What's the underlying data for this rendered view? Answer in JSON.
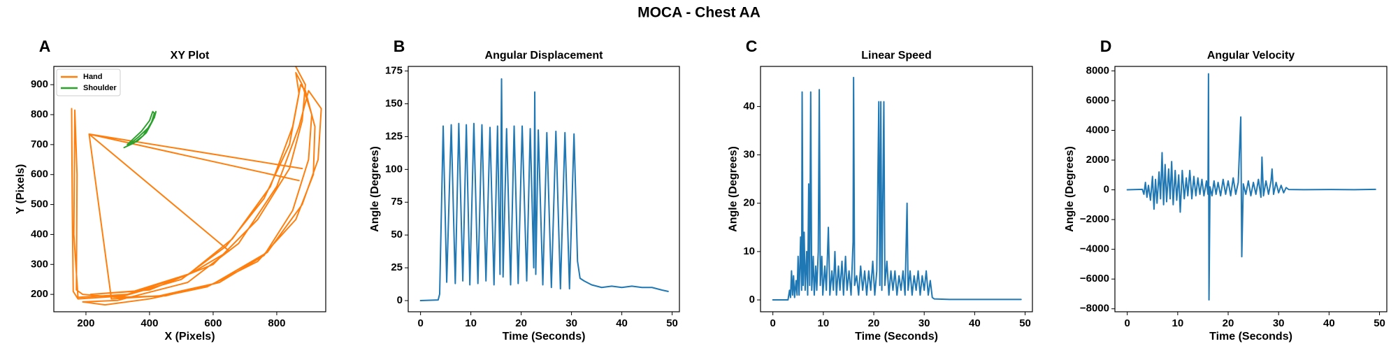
{
  "title": "MOCA - Chest AA",
  "chart_data": [
    {
      "type": "line",
      "panel_label": "A",
      "title": "XY Plot",
      "xlabel": "X (Pixels)",
      "ylabel": "Y (Pixels)",
      "xlim": [
        99,
        954
      ],
      "ylim": [
        142,
        961
      ],
      "xticks": [
        200,
        400,
        600,
        800
      ],
      "yticks": [
        200,
        300,
        400,
        500,
        600,
        700,
        800,
        900
      ],
      "legend": "upper left",
      "series": [
        {
          "name": "Hand",
          "color": "#ff7f0e",
          "x": [
            155,
            157,
            160,
            175,
            320,
            500,
            640,
            760,
            840,
            870,
            860,
            880,
            910,
            900,
            850,
            760,
            620,
            450,
            300,
            190,
            170,
            172,
            165,
            162,
            175,
            330,
            520,
            660,
            780,
            850,
            875,
            890,
            920,
            915,
            860,
            740,
            580,
            400,
            260,
            190,
            300,
            520,
            680,
            800,
            870,
            900,
            940,
            930,
            880,
            770,
            600,
            430,
            280,
            210,
            880,
            210,
            870,
            210,
            650,
            530,
            350,
            215,
            400,
            600,
            740,
            840,
            880,
            890,
            860
          ],
          "values": [
            820,
            500,
            210,
            185,
            195,
            250,
            360,
            520,
            700,
            870,
            940,
            900,
            800,
            650,
            480,
            330,
            240,
            195,
            190,
            200,
            215,
            600,
            815,
            400,
            190,
            200,
            265,
            385,
            560,
            760,
            900,
            880,
            760,
            600,
            450,
            310,
            225,
            185,
            165,
            175,
            180,
            240,
            370,
            560,
            760,
            880,
            820,
            650,
            500,
            340,
            235,
            195,
            185,
            735,
            620,
            735,
            580,
            735,
            345,
            270,
            210,
            200,
            215,
            300,
            450,
            620,
            780,
            900,
            960
          ]
        },
        {
          "name": "Shoulder",
          "color": "#2ca02c",
          "x": [
            320,
            350,
            380,
            405,
            415,
            410,
            400,
            375,
            345,
            330,
            360,
            390,
            410,
            420,
            415,
            395,
            365,
            335
          ],
          "values": [
            690,
            705,
            730,
            770,
            805,
            810,
            780,
            745,
            715,
            700,
            710,
            740,
            780,
            810,
            790,
            755,
            725,
            700
          ]
        }
      ]
    },
    {
      "type": "line",
      "panel_label": "B",
      "title": "Angular Displacement",
      "xlabel": "Time (Seconds)",
      "ylabel": "Angle (Degrees)",
      "xlim": [
        -2.45,
        51.45
      ],
      "ylim": [
        -8.5,
        178.5
      ],
      "xticks": [
        0,
        10,
        20,
        30,
        40,
        50
      ],
      "yticks": [
        0,
        25,
        50,
        75,
        100,
        125,
        150,
        175
      ],
      "series": [
        {
          "color": "#1f77b4",
          "x": [
            0,
            3.5,
            3.8,
            4.5,
            5.2,
            6.1,
            6.9,
            7.6,
            8.4,
            9.1,
            9.8,
            10.6,
            11.4,
            12.2,
            13.0,
            13.8,
            14.6,
            15.3,
            15.8,
            16.1,
            16.4,
            17.1,
            17.9,
            18.6,
            19.4,
            20.2,
            21.1,
            21.8,
            22.5,
            22.7,
            22.9,
            23.4,
            24.3,
            25.1,
            26.0,
            26.9,
            27.8,
            28.7,
            29.6,
            30.5,
            31.2,
            31.7,
            32.5,
            34,
            36,
            38,
            40,
            42,
            44,
            46,
            48,
            49.2
          ],
          "values": [
            0,
            0.5,
            5,
            133,
            14,
            134,
            13,
            135,
            15,
            134,
            12,
            135,
            13,
            134,
            15,
            132,
            12,
            133,
            20,
            169,
            18,
            131,
            12,
            133,
            13,
            133,
            15,
            131,
            25,
            159,
            20,
            130,
            12,
            128,
            10,
            129,
            9,
            128,
            9,
            127,
            30,
            17,
            15,
            12,
            10,
            11,
            10,
            11,
            10,
            10,
            8,
            7
          ]
        }
      ]
    },
    {
      "type": "line",
      "panel_label": "C",
      "title": "Linear Speed",
      "xlabel": "Time (Seconds)",
      "ylabel": "Angle (Degrees)",
      "xlim": [
        -2.45,
        51.45
      ],
      "ylim": [
        -2.45,
        48.3
      ],
      "xticks": [
        0,
        10,
        20,
        30,
        40,
        50
      ],
      "yticks": [
        0,
        10,
        20,
        30,
        40
      ],
      "series": [
        {
          "color": "#1f77b4",
          "x": [
            0,
            3.0,
            3.3,
            3.5,
            3.7,
            3.9,
            4.1,
            4.3,
            4.6,
            4.8,
            5.0,
            5.2,
            5.5,
            5.7,
            5.8,
            6.0,
            6.2,
            6.4,
            6.7,
            6.9,
            7.1,
            7.3,
            7.5,
            7.7,
            8.0,
            8.2,
            8.5,
            8.7,
            9.0,
            9.2,
            9.4,
            9.7,
            9.9,
            10.3,
            10.6,
            11.0,
            11.3,
            11.7,
            12.0,
            12.3,
            12.6,
            13.0,
            13.3,
            13.7,
            14.0,
            14.4,
            14.7,
            15.1,
            15.5,
            15.9,
            16.0,
            16.2,
            16.6,
            17.0,
            17.4,
            17.8,
            18.2,
            18.6,
            19.0,
            19.4,
            19.8,
            20.2,
            20.6,
            21.0,
            21.2,
            21.4,
            21.6,
            22.0,
            22.2,
            22.6,
            23.0,
            23.4,
            23.8,
            24.2,
            24.6,
            25.0,
            25.4,
            25.8,
            26.2,
            26.6,
            26.8,
            27.2,
            27.6,
            28.0,
            28.4,
            28.8,
            29.2,
            29.6,
            30.0,
            30.4,
            30.8,
            31.2,
            31.6,
            32.0,
            35,
            40,
            45,
            49.2
          ],
          "values": [
            0,
            0,
            2,
            0.5,
            6,
            1,
            5,
            0.5,
            4,
            1,
            9,
            1,
            13,
            2,
            43,
            3,
            14,
            2,
            10,
            1,
            24,
            3,
            43,
            2,
            9,
            1,
            7,
            2,
            10,
            43.5,
            3,
            9,
            1,
            7,
            2,
            15,
            1,
            6,
            2,
            10,
            1,
            7,
            2,
            8,
            1,
            9,
            2,
            6,
            1,
            12,
            46,
            3,
            5,
            1,
            7,
            2,
            6,
            1,
            6,
            2,
            8,
            1,
            6,
            41,
            3,
            41,
            2,
            41,
            3,
            8,
            1,
            6,
            2,
            6,
            1,
            5,
            2,
            6,
            1,
            20,
            2,
            6,
            1,
            5,
            2,
            6,
            1,
            5,
            2,
            6,
            1,
            4,
            0.5,
            0.2,
            0.1,
            0.1,
            0.1,
            0.1
          ]
        }
      ]
    },
    {
      "type": "line",
      "panel_label": "D",
      "title": "Angular Velocity",
      "xlabel": "Time (Seconds)",
      "ylabel": "Angle (Degrees)",
      "xlim": [
        -2.45,
        51.45
      ],
      "ylim": [
        -8200,
        8300
      ],
      "xticks": [
        0,
        10,
        20,
        30,
        40,
        50
      ],
      "yticks": [
        {
          "value": -8000,
          "label": "−8000"
        },
        {
          "value": -6000,
          "label": "−6000"
        },
        {
          "value": -4000,
          "label": "−4000"
        },
        {
          "value": -2000,
          "label": "−2000"
        },
        0,
        2000,
        4000,
        6000,
        8000
      ],
      "series": [
        {
          "color": "#1f77b4",
          "x": [
            0,
            3.0,
            3.3,
            3.6,
            3.9,
            4.2,
            4.6,
            5.0,
            5.3,
            5.6,
            5.9,
            6.3,
            6.6,
            6.9,
            7.2,
            7.5,
            7.8,
            8.2,
            8.5,
            8.8,
            9.1,
            9.5,
            9.8,
            10.2,
            10.5,
            10.9,
            11.3,
            11.7,
            12.0,
            12.4,
            12.8,
            13.2,
            13.6,
            14.0,
            14.4,
            14.8,
            15.2,
            15.7,
            16.0,
            16.1,
            16.2,
            16.4,
            16.8,
            17.2,
            17.6,
            18.0,
            18.5,
            19.0,
            19.5,
            20.0,
            20.5,
            21.0,
            21.5,
            22.0,
            22.5,
            22.7,
            23.0,
            23.5,
            24.0,
            24.5,
            25.0,
            25.5,
            26.0,
            26.5,
            26.7,
            27.0,
            27.5,
            28.0,
            28.5,
            28.7,
            29.0,
            29.5,
            30.0,
            30.5,
            31.0,
            31.5,
            32.0,
            35,
            40,
            45,
            49.2
          ],
          "values": [
            0,
            30,
            -300,
            500,
            -500,
            300,
            -700,
            900,
            -1300,
            700,
            -900,
            1200,
            -600,
            2500,
            -1000,
            1700,
            -800,
            1400,
            -600,
            1900,
            -1000,
            1300,
            -700,
            1000,
            -1500,
            1300,
            -600,
            800,
            -400,
            1300,
            -600,
            900,
            -400,
            800,
            -300,
            700,
            -400,
            600,
            -300,
            7800,
            -7400,
            200,
            -400,
            600,
            -300,
            500,
            -400,
            700,
            -300,
            600,
            -400,
            800,
            -300,
            500,
            4900,
            -4500,
            400,
            -300,
            600,
            -400,
            500,
            -300,
            700,
            -500,
            2200,
            -400,
            600,
            -300,
            600,
            1400,
            -300,
            500,
            -200,
            300,
            -200,
            150,
            20,
            10,
            20,
            10,
            30
          ]
        }
      ]
    }
  ]
}
